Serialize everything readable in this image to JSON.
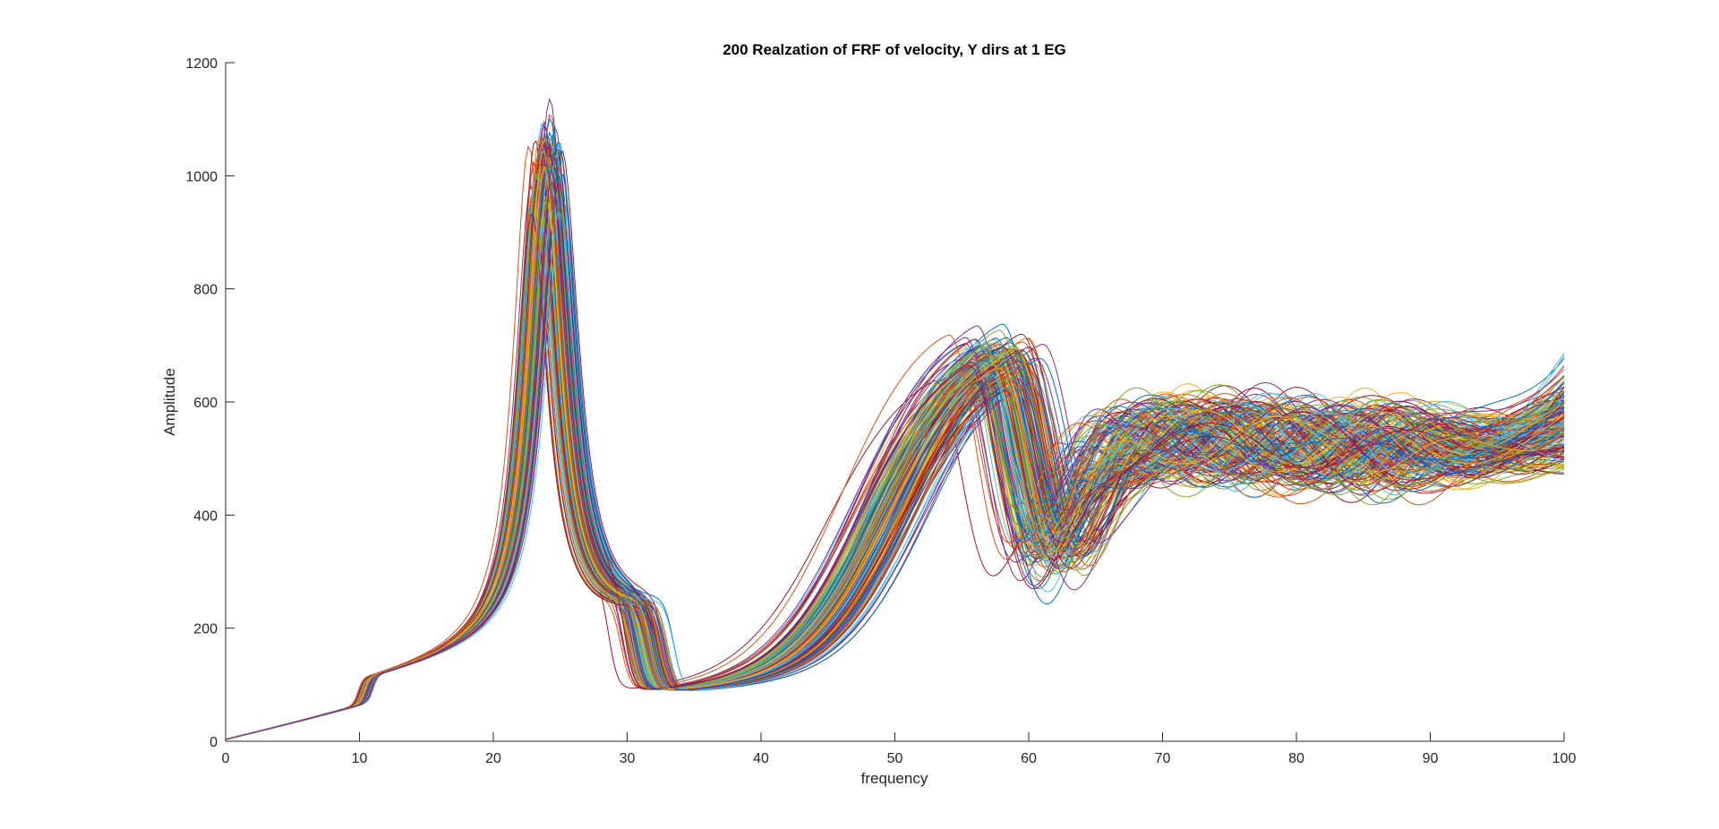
{
  "chart_data": {
    "type": "line",
    "title": "200 Realzation of FRF of velocity, Y dirs at 1 EG",
    "xlabel": "frequency",
    "ylabel": "Amplitude",
    "xlim": [
      0,
      100
    ],
    "ylim": [
      0,
      1200
    ],
    "xticks": [
      "0",
      "10",
      "20",
      "30",
      "40",
      "50",
      "60",
      "70",
      "80",
      "90",
      "100"
    ],
    "yticks": [
      "0",
      "200",
      "400",
      "600",
      "800",
      "1000",
      "1200"
    ],
    "grid": false,
    "legend": "none",
    "series_count": 200,
    "colors": [
      "#0072BD",
      "#D95319",
      "#EDB120",
      "#7E2F8E",
      "#77AC30",
      "#4DBEEE",
      "#A2142F"
    ],
    "representative_envelope": {
      "x": [
        0,
        9,
        10,
        11,
        12,
        15,
        18,
        20,
        22,
        23,
        24,
        25,
        26,
        28,
        30,
        31,
        32,
        34,
        40,
        45,
        50,
        54,
        57,
        58,
        59,
        60,
        62,
        64,
        67,
        70,
        73,
        76,
        79,
        82,
        85,
        90,
        93,
        96,
        100
      ],
      "y": [
        0,
        52,
        58,
        95,
        108,
        125,
        175,
        255,
        470,
        700,
        870,
        700,
        470,
        150,
        40,
        15,
        70,
        100,
        180,
        280,
        460,
        610,
        680,
        710,
        700,
        660,
        450,
        380,
        540,
        600,
        570,
        530,
        580,
        520,
        480,
        470,
        480,
        510,
        560
      ]
    }
  }
}
